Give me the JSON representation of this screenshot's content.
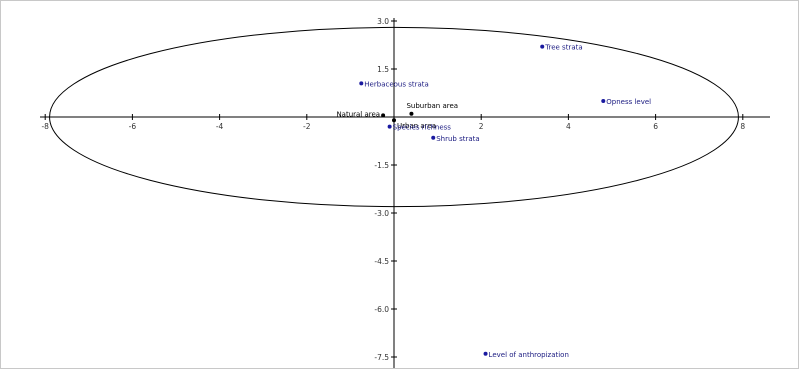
{
  "chart_data": {
    "type": "scatter",
    "xlim": [
      -8,
      8.5
    ],
    "ylim": [
      -7.8,
      3
    ],
    "x_ticks": [
      -8,
      -6,
      -4,
      -2,
      2,
      4,
      6,
      8
    ],
    "y_ticks": [
      3.0,
      1.5,
      -1.5,
      -3.0,
      -4.5,
      -6.0,
      -7.5
    ],
    "ellipse": {
      "cx": 0,
      "cy": 0,
      "rx": 7.9,
      "ry": 2.8
    },
    "points": [
      {
        "label": "Tree strata",
        "x": 3.4,
        "y": 2.2,
        "group": "variable"
      },
      {
        "label": "Herbaceous strata",
        "x": -0.75,
        "y": 1.05,
        "group": "variable"
      },
      {
        "label": "Opness level",
        "x": 4.8,
        "y": 0.5,
        "group": "variable"
      },
      {
        "label": "Suburban area",
        "x": 0.4,
        "y": 0.1,
        "group": "site"
      },
      {
        "label": "Natural area",
        "x": -0.25,
        "y": 0.05,
        "group": "site"
      },
      {
        "label": "Urban area",
        "x": 0.0,
        "y": -0.1,
        "group": "site"
      },
      {
        "label": "Species richness",
        "x": -0.1,
        "y": -0.3,
        "group": "variable"
      },
      {
        "label": "Shrub strata",
        "x": 0.9,
        "y": -0.65,
        "group": "variable"
      },
      {
        "label": "Level of anthropization",
        "x": 2.1,
        "y": -7.4,
        "group": "variable"
      }
    ]
  }
}
